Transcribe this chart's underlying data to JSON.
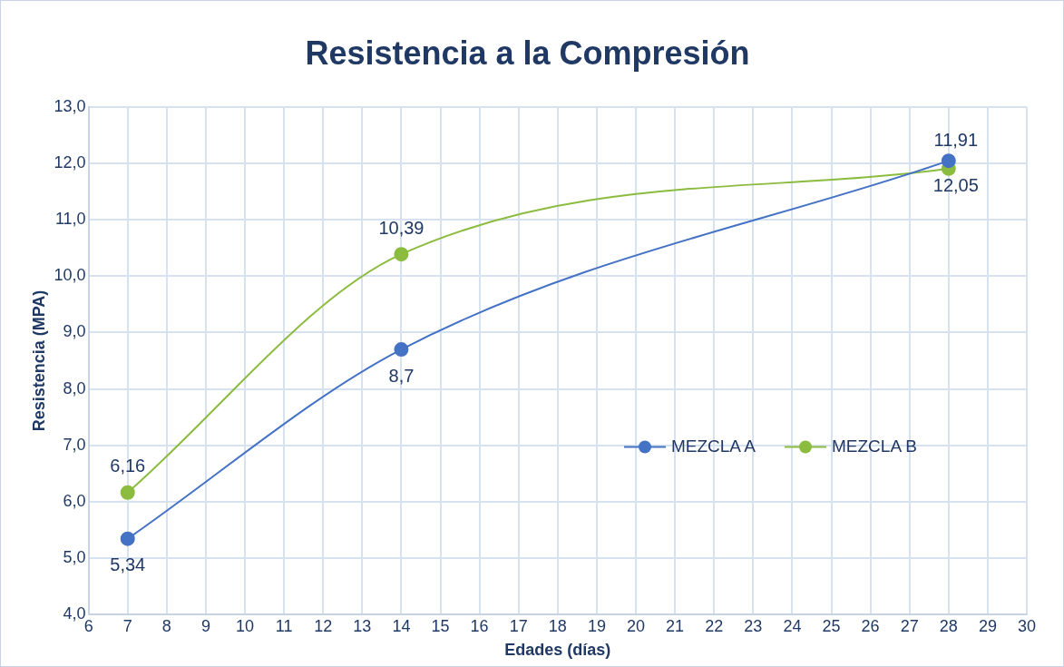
{
  "chart_data": {
    "type": "line",
    "title": "Resistencia a la Compresión",
    "xlabel": "Edades (días)",
    "ylabel": "Resistencia (MPA)",
    "x": [
      7,
      14,
      28
    ],
    "series": [
      {
        "name": "MEZCLA A",
        "color": "#4472c4",
        "values": [
          5.34,
          8.7,
          12.05
        ],
        "value_labels": [
          "5,34",
          "8,7",
          "12,05"
        ]
      },
      {
        "name": "MEZCLA B",
        "color": "#8cbc3f",
        "values": [
          6.16,
          10.39,
          11.91
        ],
        "value_labels": [
          "6,16",
          "10,39",
          "11,91"
        ]
      }
    ],
    "xlim": [
      6,
      30
    ],
    "xticks": [
      6,
      7,
      8,
      9,
      10,
      11,
      12,
      13,
      14,
      15,
      16,
      17,
      18,
      19,
      20,
      21,
      22,
      23,
      24,
      25,
      26,
      27,
      28,
      29,
      30
    ],
    "ylim": [
      4,
      13
    ],
    "yticks": [
      {
        "value": 4,
        "label": "4,0"
      },
      {
        "value": 5,
        "label": "5,0"
      },
      {
        "value": 6,
        "label": "6,0"
      },
      {
        "value": 7,
        "label": "7,0"
      },
      {
        "value": 8,
        "label": "8,0"
      },
      {
        "value": 9,
        "label": "9,0"
      },
      {
        "value": 10,
        "label": "10,0"
      },
      {
        "value": 11,
        "label": "11,0"
      },
      {
        "value": 12,
        "label": "12,0"
      },
      {
        "value": 13,
        "label": "13,0"
      }
    ],
    "grid": true,
    "legend": "right",
    "marker": "circle",
    "line_style": "solid"
  }
}
